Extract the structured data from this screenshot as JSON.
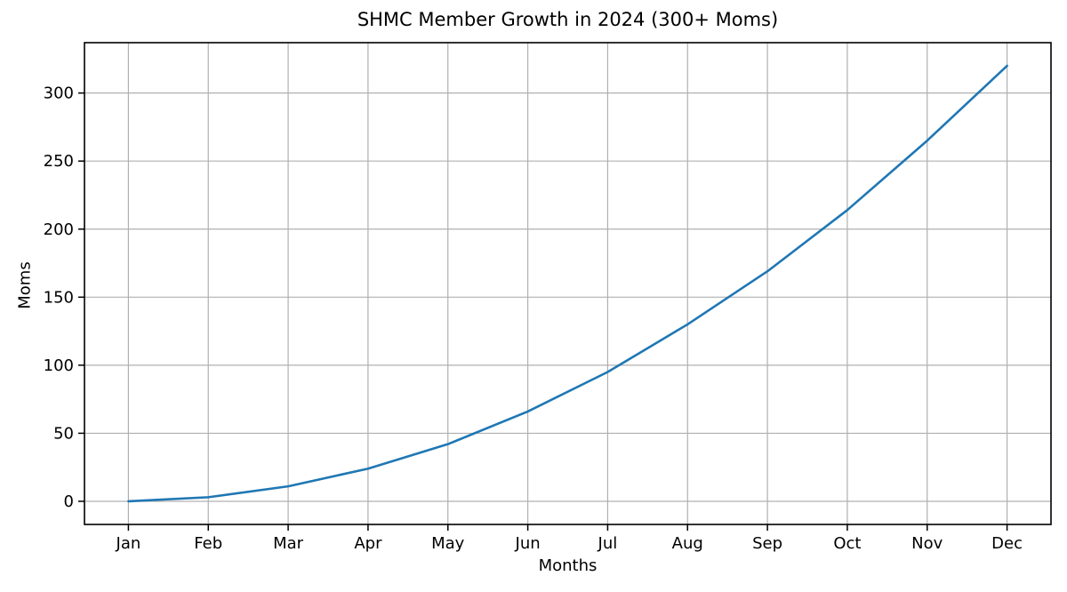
{
  "figure": {
    "background": "#ffffff"
  },
  "chart_data": {
    "type": "line",
    "title": "SHMC Member Growth in 2024 (300+ Moms)",
    "xlabel": "Months",
    "ylabel": "Moms",
    "categories": [
      "Jan",
      "Feb",
      "Mar",
      "Apr",
      "May",
      "Jun",
      "Jul",
      "Aug",
      "Sep",
      "Oct",
      "Nov",
      "Dec"
    ],
    "series": [
      {
        "name": "Moms",
        "values": [
          0,
          3,
          11,
          24,
          42,
          66,
          95,
          130,
          169,
          214,
          265,
          320
        ]
      }
    ],
    "yticks": [
      0,
      50,
      100,
      150,
      200,
      250,
      300
    ],
    "ylim": [
      -17,
      337
    ],
    "grid": true,
    "legend": false,
    "colors": {
      "line": "#1f77b4",
      "grid": "#b0b0b0",
      "spine": "#000000",
      "tick_text": "#000000",
      "background": "#ffffff"
    }
  }
}
